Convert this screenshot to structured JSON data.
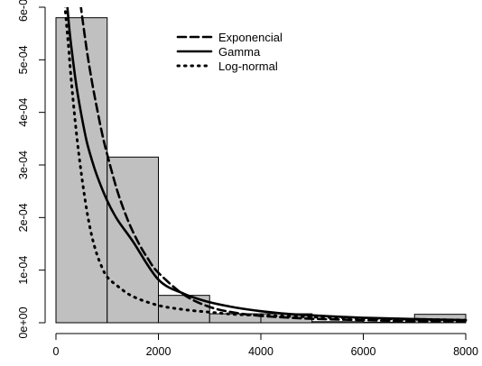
{
  "chart_data": {
    "type": "histogram",
    "title": "",
    "xlabel": "",
    "ylabel": "",
    "xlim": [
      0,
      8000
    ],
    "ylim": [
      0,
      0.0006
    ],
    "x_ticks": [
      {
        "value": 0,
        "label": "0"
      },
      {
        "value": 2000,
        "label": "2000"
      },
      {
        "value": 4000,
        "label": "4000"
      },
      {
        "value": 6000,
        "label": "6000"
      },
      {
        "value": 8000,
        "label": "8000"
      }
    ],
    "y_ticks": [
      {
        "value": 0,
        "label": "0e+00"
      },
      {
        "value": 0.0001,
        "label": "1e-04"
      },
      {
        "value": 0.0002,
        "label": "2e-04"
      },
      {
        "value": 0.0003,
        "label": "3e-04"
      },
      {
        "value": 0.0004,
        "label": "4e-04"
      },
      {
        "value": 0.0005,
        "label": "5e-04"
      },
      {
        "value": 0.0006,
        "label": "6e-04"
      }
    ],
    "bins": [
      {
        "from": 0,
        "to": 1000,
        "density": 0.00058
      },
      {
        "from": 1000,
        "to": 2000,
        "density": 0.000315
      },
      {
        "from": 2000,
        "to": 3000,
        "density": 5.2e-05
      },
      {
        "from": 3000,
        "to": 4000,
        "density": 1.7e-05
      },
      {
        "from": 4000,
        "to": 5000,
        "density": 1.7e-05
      },
      {
        "from": 5000,
        "to": 6000,
        "density": 2e-06
      },
      {
        "from": 6000,
        "to": 7000,
        "density": 1e-06
      },
      {
        "from": 7000,
        "to": 8000,
        "density": 1.6e-05
      }
    ],
    "bar_color": "#c0c0c0",
    "series": [
      {
        "name": "Exponencial",
        "style": "dashed",
        "x": [
          450,
          500,
          600,
          700,
          800,
          900,
          1000,
          1200,
          1400,
          1600,
          1800,
          2000,
          2500,
          3000,
          3500,
          4000,
          4500,
          5000,
          6000,
          7000,
          8000
        ],
        "y": [
          0.00063,
          0.00059,
          0.00052,
          0.00046,
          0.000408,
          0.00036,
          0.00032,
          0.00025,
          0.000196,
          0.000154,
          0.000121,
          9.5e-05,
          5.3e-05,
          3e-05,
          1.9e-05,
          1.3e-05,
          1e-05,
          7.5e-06,
          5e-06,
          3e-06,
          2e-06
        ]
      },
      {
        "name": "Gamma",
        "style": "solid",
        "x": [
          200,
          250,
          300,
          400,
          500,
          600,
          700,
          800,
          1000,
          1200,
          1500,
          2000,
          2500,
          3000,
          3500,
          4000,
          4500,
          5000,
          6000,
          7000,
          8000
        ],
        "y": [
          0.00063,
          0.00057,
          0.000525,
          0.00045,
          0.000393,
          0.000345,
          0.00031,
          0.00028,
          0.000232,
          0.000196,
          0.000155,
          8.2e-05,
          5.5e-05,
          3.9e-05,
          2.9e-05,
          2.2e-05,
          1.7e-05,
          1.4e-05,
          9.5e-06,
          7e-06,
          5e-06
        ]
      },
      {
        "name": "Log-normal",
        "style": "dotted",
        "x": [
          150,
          200,
          250,
          300,
          400,
          500,
          600,
          700,
          800,
          900,
          1000,
          1200,
          1500,
          2000,
          2500,
          3000,
          3500,
          4000,
          5000,
          6000,
          7000,
          8000
        ],
        "y": [
          0.00063,
          0.000575,
          0.00052,
          0.00046,
          0.00036,
          0.00028,
          0.000215,
          0.000165,
          0.00013,
          0.000105,
          8.7e-05,
          7e-05,
          5e-05,
          3.3e-05,
          2.5e-05,
          2e-05,
          1.6e-05,
          1.4e-05,
          1.1e-05,
          8.5e-06,
          6.5e-06,
          5e-06
        ]
      }
    ],
    "legend_position": "top-right",
    "grid": false
  }
}
